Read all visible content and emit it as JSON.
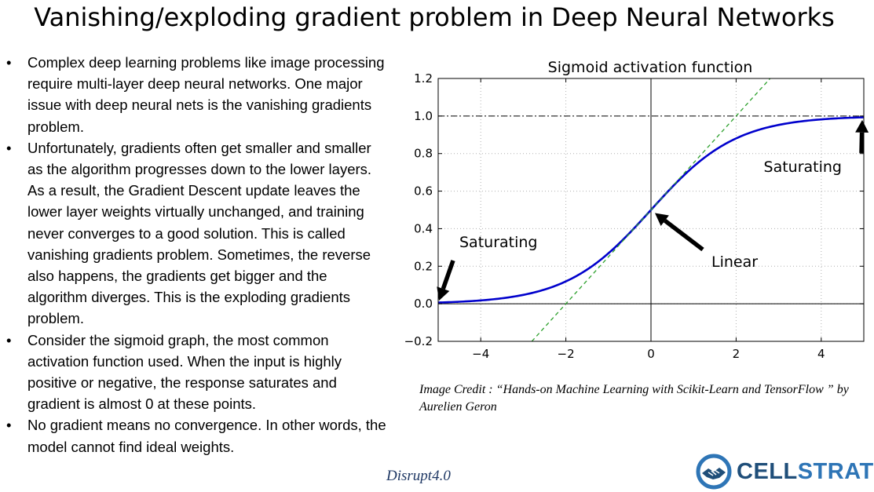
{
  "slide": {
    "title": "Vanishing/exploding gradient problem in Deep Neural Networks",
    "bullets": [
      "Complex deep learning problems like image processing require multi-layer deep neural networks. One major issue with deep neural nets is the vanishing gradients problem.",
      "Unfortunately, gradients often get smaller and smaller as the algorithm progresses down to the lower layers. As a result, the Gradient Descent update leaves the lower layer weights virtually unchanged, and training never converges to a good solution. This is called vanishing gradients problem. Sometimes, the reverse also happens, the gradients get bigger and the algorithm diverges. This is the exploding gradients problem.",
      "Consider the sigmoid graph, the most common activation function used. When the input is highly positive or negative, the response saturates and gradient is almost 0 at these points.",
      "No gradient means no convergence. In other words, the model cannot find ideal weights."
    ],
    "bullet_symbol": "•",
    "image_credit": "Image Credit : “Hands-on Machine Learning with Scikit-Learn and TensorFlow ” by Aurelien Geron",
    "footer_center": "Disrupt4.0",
    "logo": {
      "text_part1": "CELL",
      "text_part2": "STRAT",
      "icon": "handshake-globe-icon"
    }
  },
  "chart_data": {
    "type": "line",
    "title": "Sigmoid activation function",
    "xlim": [
      -5,
      5
    ],
    "ylim": [
      -0.2,
      1.2
    ],
    "xticks": [
      -4,
      -2,
      0,
      2,
      4
    ],
    "xtick_labels": [
      "−4",
      "−2",
      "0",
      "2",
      "4"
    ],
    "yticks": [
      -0.2,
      0.0,
      0.2,
      0.4,
      0.6,
      0.8,
      1.0,
      1.2
    ],
    "ytick_labels": [
      "−0.2",
      "0.0",
      "0.2",
      "0.4",
      "0.6",
      "0.8",
      "1.0",
      "1.2"
    ],
    "grid": true,
    "series": [
      {
        "style": "solid",
        "color": "#0000cc",
        "function": "sigmoid"
      },
      {
        "style": "dashed",
        "color": "#2ca02c",
        "function": "linear",
        "slope": 0.25,
        "intercept": 0.5
      }
    ],
    "reference_lines": [
      {
        "axis": "y",
        "value": 1.0,
        "style": "dashdot",
        "color": "#000000"
      },
      {
        "axis": "y",
        "value": 0.0,
        "style": "solid",
        "color": "#000000"
      },
      {
        "axis": "x",
        "value": 0.0,
        "style": "solid",
        "color": "#000000"
      }
    ],
    "annotations": [
      {
        "text": "Saturating",
        "point": [
          -5,
          0.0
        ]
      },
      {
        "text": "Saturating",
        "point": [
          5,
          1.0
        ]
      },
      {
        "text": "Linear",
        "point": [
          0,
          0.5
        ]
      }
    ],
    "colors": {
      "curve": "#0000cc",
      "tangent": "#2ca02c",
      "grid": "#b0b0b0"
    }
  }
}
